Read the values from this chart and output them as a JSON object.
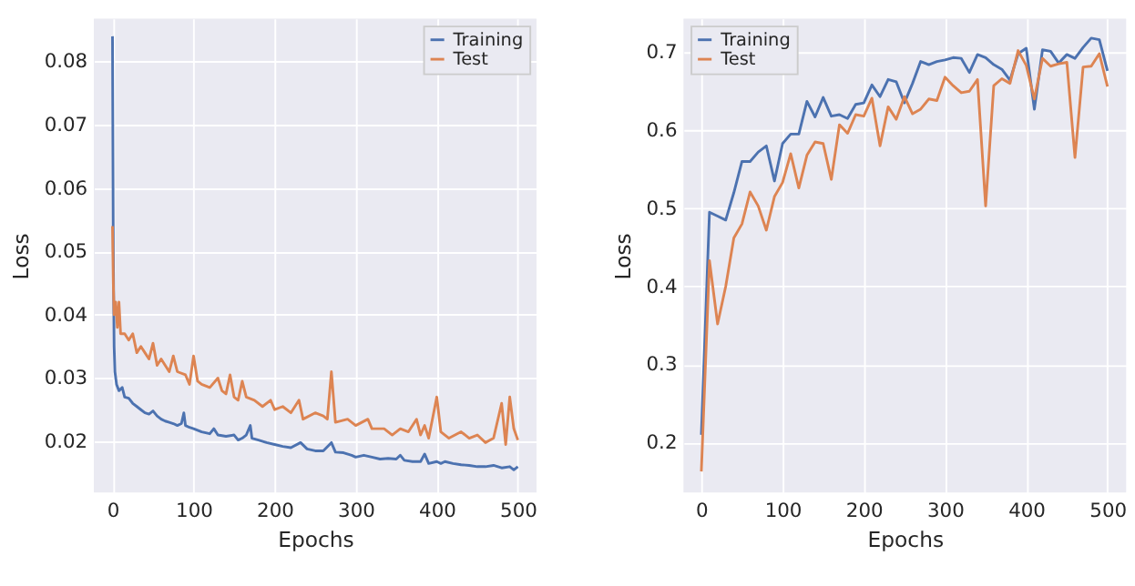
{
  "chart_data": [
    {
      "type": "line",
      "xlabel": "Epochs",
      "ylabel": "Loss",
      "xlim": [
        -23,
        523
      ],
      "ylim": [
        0.0119,
        0.0868
      ],
      "xticks": [
        0,
        100,
        200,
        300,
        400,
        500
      ],
      "yticks": [
        0.02,
        0.03,
        0.04,
        0.05,
        0.06,
        0.07,
        0.08
      ],
      "grid": true,
      "legend": "top right",
      "line_style": "solid",
      "marker": "none",
      "series": [
        {
          "name": "Training",
          "color": "#4c72b0",
          "x": [
            0,
            1,
            2,
            3,
            5,
            8,
            12,
            15,
            20,
            25,
            30,
            35,
            40,
            45,
            50,
            55,
            60,
            65,
            70,
            75,
            80,
            85,
            88,
            90,
            95,
            100,
            110,
            120,
            125,
            130,
            140,
            150,
            155,
            160,
            165,
            170,
            172,
            180,
            190,
            200,
            210,
            220,
            232,
            240,
            250,
            260,
            270,
            275,
            285,
            295,
            300,
            310,
            320,
            330,
            340,
            350,
            355,
            360,
            370,
            380,
            385,
            390,
            400,
            405,
            410,
            420,
            430,
            440,
            450,
            460,
            470,
            480,
            490,
            495,
            500
          ],
          "values": [
            0.084,
            0.05,
            0.035,
            0.031,
            0.029,
            0.028,
            0.0285,
            0.027,
            0.0268,
            0.026,
            0.0255,
            0.025,
            0.0245,
            0.0243,
            0.0248,
            0.024,
            0.0235,
            0.0232,
            0.023,
            0.0228,
            0.0225,
            0.0228,
            0.0245,
            0.0225,
            0.0222,
            0.022,
            0.0215,
            0.0212,
            0.022,
            0.021,
            0.0208,
            0.021,
            0.0202,
            0.0205,
            0.021,
            0.0225,
            0.0205,
            0.0202,
            0.0198,
            0.0195,
            0.0192,
            0.019,
            0.0198,
            0.0188,
            0.0185,
            0.0185,
            0.0198,
            0.0183,
            0.0182,
            0.0178,
            0.0175,
            0.0178,
            0.0175,
            0.0172,
            0.0173,
            0.0172,
            0.0178,
            0.017,
            0.0168,
            0.0168,
            0.018,
            0.0165,
            0.0168,
            0.0165,
            0.0168,
            0.0165,
            0.0163,
            0.0162,
            0.016,
            0.016,
            0.0162,
            0.0158,
            0.016,
            0.0155,
            0.016
          ]
        },
        {
          "name": "Test",
          "color": "#dd8452",
          "x": [
            0,
            1,
            2,
            4,
            6,
            8,
            10,
            15,
            20,
            25,
            30,
            35,
            40,
            45,
            50,
            55,
            60,
            70,
            75,
            80,
            90,
            95,
            100,
            105,
            110,
            120,
            130,
            135,
            140,
            145,
            150,
            155,
            160,
            165,
            175,
            185,
            195,
            200,
            210,
            220,
            230,
            235,
            250,
            260,
            265,
            270,
            275,
            290,
            300,
            315,
            320,
            335,
            345,
            355,
            365,
            375,
            380,
            385,
            390,
            400,
            405,
            415,
            430,
            440,
            450,
            460,
            470,
            480,
            485,
            490,
            495,
            500
          ],
          "values": [
            0.054,
            0.045,
            0.04,
            0.042,
            0.038,
            0.042,
            0.037,
            0.037,
            0.036,
            0.037,
            0.034,
            0.035,
            0.034,
            0.033,
            0.0355,
            0.032,
            0.033,
            0.031,
            0.0335,
            0.031,
            0.0305,
            0.029,
            0.0335,
            0.0295,
            0.029,
            0.0285,
            0.03,
            0.028,
            0.0275,
            0.0305,
            0.027,
            0.0265,
            0.0295,
            0.027,
            0.0265,
            0.0255,
            0.0265,
            0.025,
            0.0255,
            0.0245,
            0.0265,
            0.0235,
            0.0245,
            0.024,
            0.0235,
            0.031,
            0.023,
            0.0235,
            0.0225,
            0.0235,
            0.022,
            0.022,
            0.021,
            0.022,
            0.0215,
            0.0235,
            0.021,
            0.0225,
            0.0205,
            0.027,
            0.0215,
            0.0205,
            0.0215,
            0.0205,
            0.021,
            0.0198,
            0.0205,
            0.026,
            0.0195,
            0.027,
            0.022,
            0.0202
          ]
        }
      ]
    },
    {
      "type": "line",
      "xlabel": "Epochs",
      "ylabel": "Loss",
      "xlim": [
        -22,
        523
      ],
      "ylim": [
        0.136,
        0.743
      ],
      "xticks": [
        0,
        100,
        200,
        300,
        400,
        500
      ],
      "yticks": [
        0.2,
        0.3,
        0.4,
        0.5,
        0.6,
        0.7
      ],
      "grid": true,
      "legend": "top left",
      "line_style": "solid",
      "marker": "none",
      "x": [
        0,
        10,
        20,
        30,
        40,
        50,
        60,
        70,
        80,
        90,
        100,
        110,
        120,
        130,
        140,
        150,
        160,
        170,
        180,
        190,
        200,
        210,
        220,
        230,
        240,
        250,
        260,
        270,
        280,
        290,
        300,
        310,
        320,
        330,
        340,
        350,
        360,
        370,
        380,
        390,
        400,
        410,
        420,
        430,
        440,
        450,
        460,
        470,
        480,
        490,
        500
      ],
      "series": [
        {
          "name": "Training",
          "color": "#4c72b0",
          "values": [
            0.21,
            0.495,
            0.49,
            0.485,
            0.52,
            0.56,
            0.56,
            0.572,
            0.58,
            0.535,
            0.583,
            0.595,
            0.595,
            0.637,
            0.617,
            0.642,
            0.618,
            0.62,
            0.615,
            0.633,
            0.635,
            0.658,
            0.643,
            0.665,
            0.662,
            0.635,
            0.66,
            0.688,
            0.684,
            0.688,
            0.69,
            0.693,
            0.692,
            0.674,
            0.697,
            0.693,
            0.684,
            0.678,
            0.664,
            0.698,
            0.705,
            0.627,
            0.703,
            0.701,
            0.686,
            0.697,
            0.692,
            0.706,
            0.718,
            0.716,
            0.676
          ]
        },
        {
          "name": "Test",
          "color": "#dd8452",
          "values": [
            0.163,
            0.433,
            0.352,
            0.4,
            0.462,
            0.48,
            0.521,
            0.503,
            0.472,
            0.515,
            0.533,
            0.57,
            0.526,
            0.568,
            0.585,
            0.583,
            0.537,
            0.607,
            0.596,
            0.62,
            0.618,
            0.641,
            0.58,
            0.63,
            0.614,
            0.643,
            0.621,
            0.627,
            0.64,
            0.638,
            0.668,
            0.657,
            0.648,
            0.65,
            0.665,
            0.503,
            0.657,
            0.666,
            0.66,
            0.702,
            0.683,
            0.64,
            0.692,
            0.682,
            0.685,
            0.687,
            0.565,
            0.681,
            0.682,
            0.698,
            0.656
          ]
        }
      ]
    }
  ]
}
